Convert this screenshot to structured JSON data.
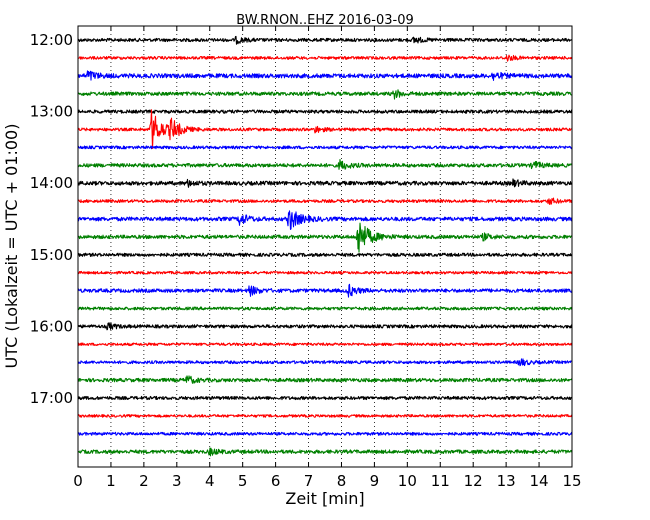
{
  "chart_data": {
    "type": "line",
    "title": "BW.RNON..EHZ 2016-03-09",
    "xlabel": "Zeit  [min]",
    "ylabel": "UTC (Lokalzeit = UTC + 01:00)",
    "xlim": [
      0,
      15
    ],
    "x_ticks": [
      0,
      1,
      2,
      3,
      4,
      5,
      6,
      7,
      8,
      9,
      10,
      11,
      12,
      13,
      14,
      15
    ],
    "x_tick_labels": [
      "0",
      "1",
      "2",
      "3",
      "4",
      "5",
      "6",
      "7",
      "8",
      "9",
      "10",
      "11",
      "12",
      "13",
      "14",
      "15"
    ],
    "y_tick_labels": [
      "12:00",
      "13:00",
      "14:00",
      "15:00",
      "16:00",
      "17:00"
    ],
    "y_tick_rows": [
      0,
      4,
      8,
      12,
      16,
      20
    ],
    "grid": "vertical dotted at each minute",
    "series_colors": [
      "#000000",
      "#ff0000",
      "#0000ff",
      "#008000"
    ],
    "rows": [
      {
        "start": "12:00",
        "color": "#000000",
        "noise": 1.0,
        "events": [
          {
            "t": 4.8,
            "amp": 3
          },
          {
            "t": 10.2,
            "amp": 3
          }
        ]
      },
      {
        "start": "12:15",
        "color": "#ff0000",
        "noise": 0.9,
        "events": [
          {
            "t": 13.0,
            "amp": 3
          }
        ]
      },
      {
        "start": "12:30",
        "color": "#0000ff",
        "noise": 1.3,
        "events": [
          {
            "t": 0.3,
            "amp": 5
          },
          {
            "t": 12.6,
            "amp": 4
          }
        ]
      },
      {
        "start": "12:45",
        "color": "#008000",
        "noise": 1.1,
        "events": [
          {
            "t": 9.6,
            "amp": 4
          }
        ]
      },
      {
        "start": "13:00",
        "color": "#000000",
        "noise": 1.0,
        "events": []
      },
      {
        "start": "13:15",
        "color": "#ff0000",
        "noise": 0.9,
        "events": [
          {
            "t": 2.22,
            "amp": 17
          },
          {
            "t": 2.8,
            "amp": 8
          },
          {
            "t": 7.2,
            "amp": 3
          }
        ]
      },
      {
        "start": "13:30",
        "color": "#0000ff",
        "noise": 0.9,
        "events": []
      },
      {
        "start": "13:45",
        "color": "#008000",
        "noise": 1.1,
        "events": [
          {
            "t": 7.95,
            "amp": 5
          },
          {
            "t": 13.8,
            "amp": 4
          }
        ]
      },
      {
        "start": "14:00",
        "color": "#000000",
        "noise": 1.2,
        "events": [
          {
            "t": 3.3,
            "amp": 3
          },
          {
            "t": 13.2,
            "amp": 3
          }
        ]
      },
      {
        "start": "14:15",
        "color": "#ff0000",
        "noise": 0.9,
        "events": [
          {
            "t": 14.3,
            "amp": 3
          }
        ]
      },
      {
        "start": "14:30",
        "color": "#0000ff",
        "noise": 1.2,
        "events": [
          {
            "t": 4.9,
            "amp": 6
          },
          {
            "t": 6.4,
            "amp": 10
          }
        ]
      },
      {
        "start": "14:45",
        "color": "#008000",
        "noise": 1.1,
        "events": [
          {
            "t": 8.5,
            "amp": 17
          },
          {
            "t": 12.3,
            "amp": 3
          }
        ]
      },
      {
        "start": "15:00",
        "color": "#000000",
        "noise": 1.0,
        "events": []
      },
      {
        "start": "15:15",
        "color": "#ff0000",
        "noise": 0.8,
        "events": []
      },
      {
        "start": "15:30",
        "color": "#0000ff",
        "noise": 1.1,
        "events": [
          {
            "t": 5.2,
            "amp": 5
          },
          {
            "t": 8.2,
            "amp": 6
          }
        ]
      },
      {
        "start": "15:45",
        "color": "#008000",
        "noise": 0.9,
        "events": []
      },
      {
        "start": "16:00",
        "color": "#000000",
        "noise": 1.0,
        "events": [
          {
            "t": 0.9,
            "amp": 3
          }
        ]
      },
      {
        "start": "16:15",
        "color": "#ff0000",
        "noise": 0.8,
        "events": []
      },
      {
        "start": "16:30",
        "color": "#0000ff",
        "noise": 0.9,
        "events": [
          {
            "t": 13.4,
            "amp": 4
          }
        ]
      },
      {
        "start": "16:45",
        "color": "#008000",
        "noise": 1.1,
        "events": [
          {
            "t": 3.3,
            "amp": 4
          }
        ]
      },
      {
        "start": "17:00",
        "color": "#000000",
        "noise": 1.0,
        "events": []
      },
      {
        "start": "17:15",
        "color": "#ff0000",
        "noise": 0.8,
        "events": []
      },
      {
        "start": "17:30",
        "color": "#0000ff",
        "noise": 0.9,
        "events": []
      },
      {
        "start": "17:45",
        "color": "#008000",
        "noise": 1.1,
        "events": [
          {
            "t": 4.0,
            "amp": 3
          }
        ]
      }
    ]
  }
}
